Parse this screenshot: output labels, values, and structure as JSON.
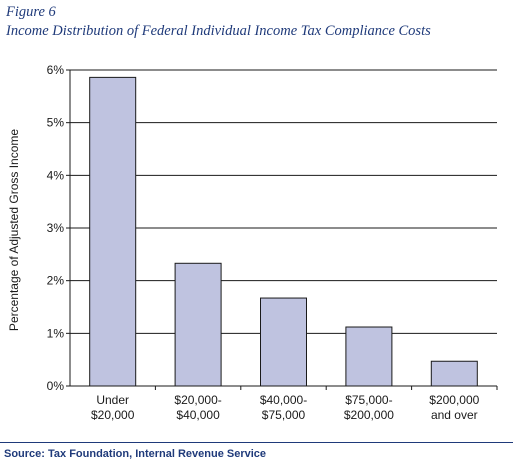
{
  "figure_label": "Figure 6",
  "source": "Source: Tax Foundation, Internal Revenue Service",
  "colors": {
    "bar_fill": "#bfc3e0",
    "bar_stroke": "#1a1a1a",
    "title": "#1f3a7a",
    "text": "#1a1a1a"
  },
  "chart_data": {
    "type": "bar",
    "title": "Income Distribution of Federal Individual Income Tax Compliance Costs",
    "xlabel": "",
    "ylabel": "Percentage of Adjusted Gross Income",
    "categories": [
      [
        "Under",
        "$20,000"
      ],
      [
        "$20,000-",
        "$40,000"
      ],
      [
        "$40,000-",
        "$75,000"
      ],
      [
        "$75,000-",
        "$200,000"
      ],
      [
        "$200,000",
        "and over"
      ]
    ],
    "values": [
      5.86,
      2.33,
      1.67,
      1.12,
      0.47
    ],
    "ylim": [
      0,
      6
    ],
    "yticks": [
      0,
      1,
      2,
      3,
      4,
      5,
      6
    ],
    "ytick_labels": [
      "0%",
      "1%",
      "2%",
      "3%",
      "4%",
      "5%",
      "6%"
    ],
    "grid": true,
    "legend": "none"
  }
}
